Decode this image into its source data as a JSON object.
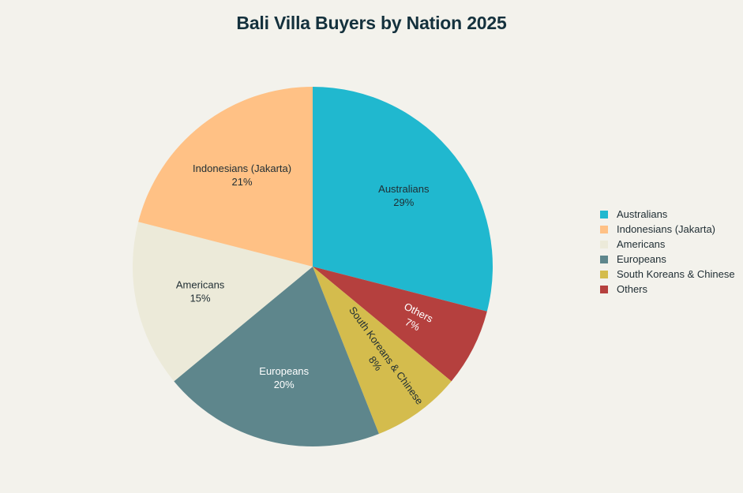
{
  "chart_data": {
    "type": "pie",
    "title": "Bali Villa Buyers by Nation 2025",
    "unit": "%",
    "legend_position": "right",
    "slices": [
      {
        "label": "Australians",
        "value": 29,
        "color": "#20b8cf",
        "text_color": "#1f2d33"
      },
      {
        "label": "Others",
        "value": 7,
        "color": "#b5403e",
        "text_color": "#ffffff"
      },
      {
        "label": "South Koreans & Chinese",
        "value": 8,
        "color": "#d4bc4d",
        "text_color": "#1f2d33"
      },
      {
        "label": "Europeans",
        "value": 20,
        "color": "#5e868c",
        "text_color": "#ffffff"
      },
      {
        "label": "Americans",
        "value": 15,
        "color": "#ecead9",
        "text_color": "#1f2d33"
      },
      {
        "label": "Indonesians (Jakarta)",
        "value": 21,
        "color": "#ffc185",
        "text_color": "#1f2d33"
      }
    ],
    "legend": [
      {
        "label": "Australians",
        "color": "#20b8cf"
      },
      {
        "label": "Indonesians (Jakarta)",
        "color": "#ffc185"
      },
      {
        "label": "Americans",
        "color": "#ecead9"
      },
      {
        "label": "Europeans",
        "color": "#5e868c"
      },
      {
        "label": "South Koreans & Chinese",
        "color": "#d4bc4d"
      },
      {
        "label": "Others",
        "color": "#b5403e"
      }
    ]
  }
}
